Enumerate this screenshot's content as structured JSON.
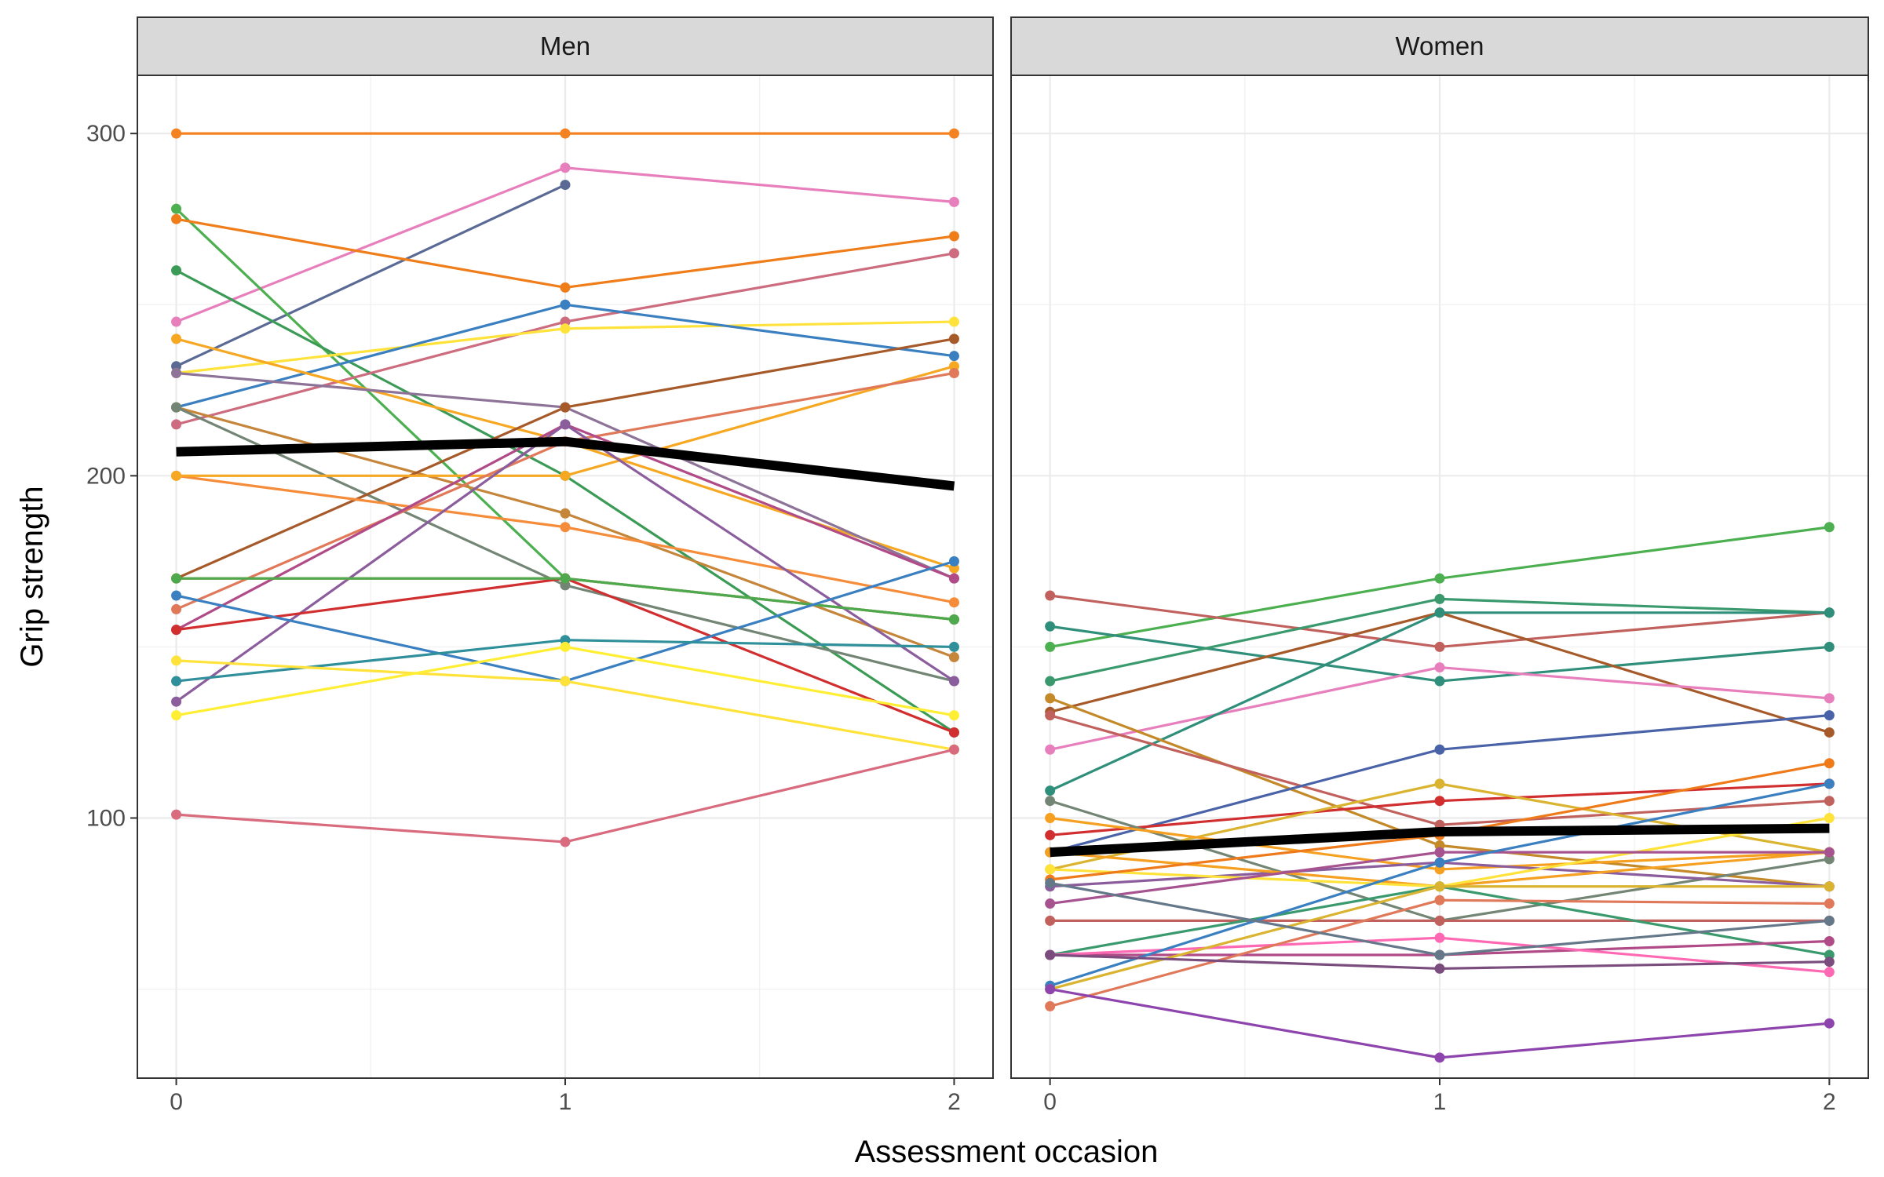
{
  "chart_data": {
    "type": "line",
    "xlabel": "Assessment occasion",
    "ylabel": "Grip strength",
    "x": [
      0,
      1,
      2
    ],
    "x_ticks": [
      "0",
      "1",
      "2"
    ],
    "y_ticks": [
      "100",
      "200",
      "300"
    ],
    "ylim": [
      24,
      317
    ],
    "xlim": [
      -0.1,
      2.1
    ],
    "grid": true,
    "legend": "none",
    "mean_line_color": "#000000",
    "facets": [
      {
        "label": "Men",
        "mean": [
          207,
          210,
          197
        ],
        "series": [
          {
            "color": "#f58220",
            "values": [
              300,
              300,
              300
            ]
          },
          {
            "color": "#e87fbd",
            "values": [
              245,
              290,
              280
            ]
          },
          {
            "color": "#5a6a95",
            "values": [
              232,
              285,
              null
            ]
          },
          {
            "color": "#4caf50",
            "values": [
              278,
              170,
              158
            ]
          },
          {
            "color": "#ef7d1a",
            "values": [
              275,
              255,
              270
            ]
          },
          {
            "color": "#3b9b56",
            "values": [
              260,
              200,
              125
            ]
          },
          {
            "color": "#cc6c7e",
            "values": [
              215,
              245,
              265
            ]
          },
          {
            "color": "#ffe23a",
            "values": [
              230,
              243,
              245
            ]
          },
          {
            "color": "#3a7fc0",
            "values": [
              220,
              250,
              235
            ]
          },
          {
            "color": "#f7a823",
            "values": [
              240,
              210,
              173
            ]
          },
          {
            "color": "#8d7398",
            "values": [
              230,
              220,
              170
            ]
          },
          {
            "color": "#c5853a",
            "values": [
              220,
              189,
              147
            ]
          },
          {
            "color": "#738574",
            "values": [
              220,
              168,
              140
            ]
          },
          {
            "color": "#a65a2a",
            "values": [
              170,
              220,
              240
            ]
          },
          {
            "color": "#f58c3a",
            "values": [
              200,
              185,
              163
            ]
          },
          {
            "color": "#f7a823",
            "values": [
              200,
              200,
              232
            ]
          },
          {
            "color": "#e0785a",
            "values": [
              161,
              210,
              230
            ]
          },
          {
            "color": "#b04b87",
            "values": [
              155,
              215,
              170
            ]
          },
          {
            "color": "#8b5d9c",
            "values": [
              134,
              215,
              140
            ]
          },
          {
            "color": "#c48a2a",
            "values": [
              170,
              170,
              158
            ]
          },
          {
            "color": "#d12e30",
            "values": [
              155,
              170,
              125
            ]
          },
          {
            "color": "#4ea84e",
            "values": [
              170,
              170,
              158
            ]
          },
          {
            "color": "#3a7fc0",
            "values": [
              165,
              140,
              175
            ]
          },
          {
            "color": "#2f8f9a",
            "values": [
              140,
              152,
              150
            ]
          },
          {
            "color": "#ffe23a",
            "values": [
              146,
              140,
              120
            ]
          },
          {
            "color": "#ffee33",
            "values": [
              130,
              150,
              130
            ]
          },
          {
            "color": "#d96b7f",
            "values": [
              101,
              93,
              120
            ]
          }
        ]
      },
      {
        "label": "Women",
        "mean": [
          90,
          96,
          97
        ],
        "series": [
          {
            "color": "#4caf50",
            "values": [
              150,
              170,
              185
            ]
          },
          {
            "color": "#c1615e",
            "values": [
              165,
              150,
              160
            ]
          },
          {
            "color": "#2f8f7a",
            "values": [
              156,
              140,
              150
            ]
          },
          {
            "color": "#3a9a6e",
            "values": [
              140,
              164,
              160
            ]
          },
          {
            "color": "#a65a2a",
            "values": [
              131,
              160,
              125
            ]
          },
          {
            "color": "#e87fbd",
            "values": [
              120,
              144,
              135
            ]
          },
          {
            "color": "#2f8f7a",
            "values": [
              108,
              160,
              160
            ]
          },
          {
            "color": "#c48a2a",
            "values": [
              135,
              92,
              80
            ]
          },
          {
            "color": "#c1615e",
            "values": [
              130,
              98,
              105
            ]
          },
          {
            "color": "#4a63a8",
            "values": [
              90,
              120,
              130
            ]
          },
          {
            "color": "#d12e30",
            "values": [
              95,
              105,
              110
            ]
          },
          {
            "color": "#dab430",
            "values": [
              85,
              110,
              90
            ]
          },
          {
            "color": "#738574",
            "values": [
              105,
              70,
              88
            ]
          },
          {
            "color": "#f5a020",
            "values": [
              100,
              85,
              90
            ]
          },
          {
            "color": "#8b5d9c",
            "values": [
              80,
              87,
              80
            ]
          },
          {
            "color": "#f5a020",
            "values": [
              90,
              80,
              90
            ]
          },
          {
            "color": "#ffe23a",
            "values": [
              85,
              80,
              100
            ]
          },
          {
            "color": "#ee7a1a",
            "values": [
              82,
              95,
              116
            ]
          },
          {
            "color": "#a65390",
            "values": [
              75,
              90,
              90
            ]
          },
          {
            "color": "#c1615e",
            "values": [
              70,
              70,
              70
            ]
          },
          {
            "color": "#3a9a6e",
            "values": [
              60,
              80,
              60
            ]
          },
          {
            "color": "#b04b87",
            "values": [
              60,
              60,
              64
            ]
          },
          {
            "color": "#ff69b4",
            "values": [
              60,
              65,
              55
            ]
          },
          {
            "color": "#3a7fc0",
            "values": [
              51,
              87,
              110
            ]
          },
          {
            "color": "#dab430",
            "values": [
              50,
              80,
              80
            ]
          },
          {
            "color": "#e0785a",
            "values": [
              45,
              76,
              75
            ]
          },
          {
            "color": "#8e44ad",
            "values": [
              50,
              30,
              40
            ]
          },
          {
            "color": "#7b4d7e",
            "values": [
              60,
              56,
              58
            ]
          },
          {
            "color": "#65788a",
            "values": [
              81,
              60,
              70
            ]
          }
        ]
      }
    ]
  }
}
